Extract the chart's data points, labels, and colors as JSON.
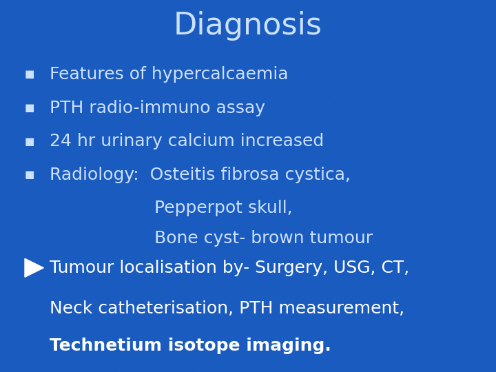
{
  "title": "Diagnosis",
  "title_color": "#cce0ff",
  "title_fontsize": 32,
  "background_color": "#1a5bbf",
  "bullet_items": [
    "Features of hypercalcaemia",
    "PTH radio-immuno assay",
    "24 hr urinary calcium increased",
    "Radiology:  Osteitis fibrosa cystica,"
  ],
  "sub_item1": "                   Pepperpot skull,",
  "sub_item2": "                   Bone cyst- brown tumour",
  "arrow_item_line1": "Tumour localisation by- Surgery, USG, CT,",
  "arrow_item_line2": "Neck catheterisation, PTH measurement,",
  "arrow_item_line3_bold": "Technetium isotope imaging.",
  "bullet_color": "#cce0ff",
  "text_color": "#cce0ff",
  "white_text": "#ffffff",
  "bullet_fontsize": 18,
  "sub_fontsize": 18,
  "arrow_fontsize": 18,
  "grid_color": "#2266cc",
  "radial_color": "#2060cc"
}
